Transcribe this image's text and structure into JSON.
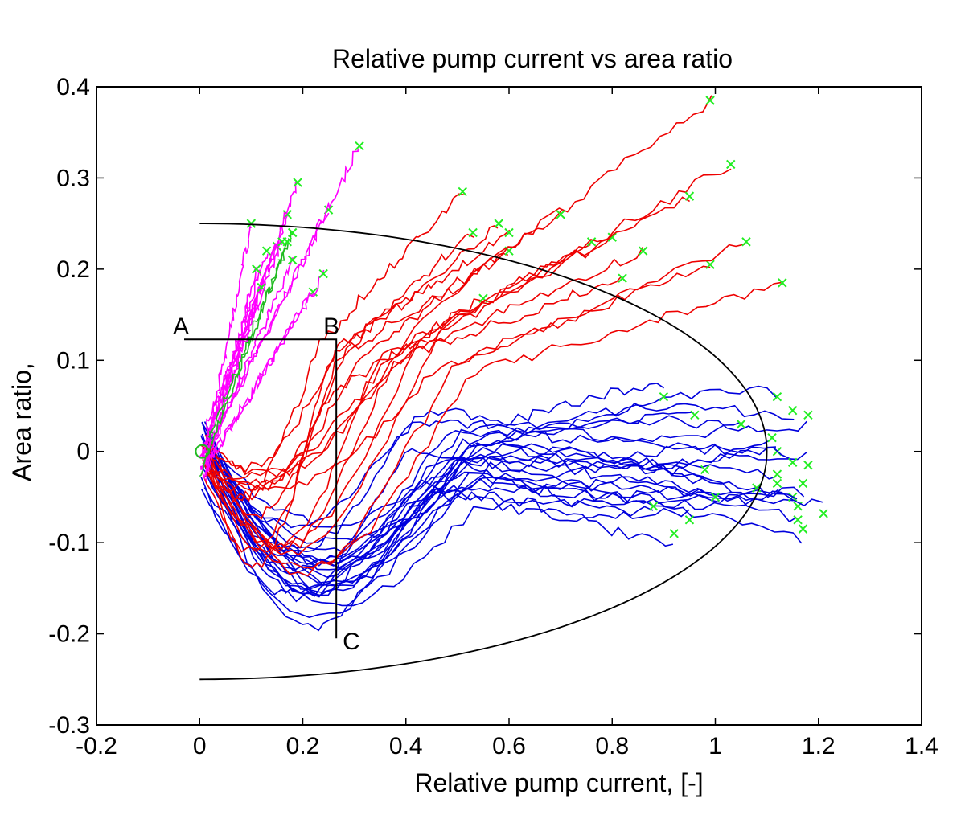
{
  "chart_data": {
    "type": "line",
    "title": "Relative pump current vs area ratio",
    "xlabel": "Relative pump current, [-]",
    "ylabel": "Area ratio,",
    "xlim": [
      -0.2,
      1.4
    ],
    "ylim": [
      -0.3,
      0.4
    ],
    "xticks": [
      -0.2,
      0,
      0.2,
      0.4,
      0.6,
      0.8,
      1,
      1.2,
      1.4
    ],
    "xtick_labels": [
      "-0.2",
      "0",
      "0.2",
      "0.4",
      "0.6",
      "0.8",
      "1",
      "1.2",
      "1.4"
    ],
    "yticks": [
      -0.3,
      -0.2,
      -0.1,
      0,
      0.1,
      0.2,
      0.3,
      0.4
    ],
    "ytick_labels": [
      "-0.3",
      "-0.2",
      "-0.1",
      "0",
      "0.1",
      "0.2",
      "0.3",
      "0.4"
    ],
    "grid": false,
    "colors": {
      "magenta": "#ff00ff",
      "red": "#ee0000",
      "blue": "#0000dd",
      "green": "#22bb22",
      "marker": "#22ee22",
      "boundary": "#000000"
    },
    "boundary": {
      "ellipse_center": [
        0,
        0
      ],
      "ellipse_semi_axes": [
        1.1,
        0.25
      ],
      "x_range": [
        0,
        1.1
      ]
    },
    "regions": [
      {
        "label": "A",
        "x": -0.03,
        "y": 0.123
      },
      {
        "label": "B",
        "x": 0.265,
        "y": 0.123
      },
      {
        "label": "C",
        "x": 0.265,
        "y": -0.205
      }
    ],
    "start_marker": [
      0.005,
      0.0
    ],
    "series_groups": [
      {
        "color": "magenta",
        "endpoints": [
          [
            0.1,
            0.25
          ],
          [
            0.13,
            0.22
          ],
          [
            0.15,
            0.225
          ],
          [
            0.17,
            0.26
          ],
          [
            0.19,
            0.295
          ],
          [
            0.25,
            0.265
          ],
          [
            0.31,
            0.335
          ],
          [
            0.12,
            0.18
          ],
          [
            0.22,
            0.175
          ],
          [
            0.24,
            0.195
          ],
          [
            0.18,
            0.21
          ],
          [
            0.11,
            0.2
          ],
          [
            0.16,
            0.23
          ]
        ]
      },
      {
        "color": "red",
        "endpoints": [
          [
            0.51,
            0.285
          ],
          [
            0.53,
            0.24
          ],
          [
            0.55,
            0.168
          ],
          [
            0.58,
            0.25
          ],
          [
            0.6,
            0.24
          ],
          [
            0.6,
            0.22
          ],
          [
            0.76,
            0.23
          ],
          [
            0.8,
            0.235
          ],
          [
            0.82,
            0.19
          ],
          [
            0.99,
            0.385
          ],
          [
            1.03,
            0.315
          ],
          [
            0.99,
            0.205
          ],
          [
            1.13,
            0.185
          ],
          [
            0.86,
            0.22
          ],
          [
            0.7,
            0.26
          ],
          [
            0.95,
            0.28
          ],
          [
            1.06,
            0.23
          ]
        ]
      },
      {
        "color": "blue",
        "endpoints": [
          [
            1.12,
            0.06
          ],
          [
            1.15,
            0.045
          ],
          [
            1.18,
            0.04
          ],
          [
            1.11,
            0.015
          ],
          [
            1.12,
            0.0
          ],
          [
            1.18,
            -0.015
          ],
          [
            1.15,
            -0.012
          ],
          [
            1.12,
            -0.025
          ],
          [
            1.12,
            -0.035
          ],
          [
            1.17,
            -0.035
          ],
          [
            1.15,
            -0.05
          ],
          [
            1.16,
            -0.06
          ],
          [
            1.21,
            -0.068
          ],
          [
            1.16,
            -0.075
          ],
          [
            1.17,
            -0.085
          ],
          [
            1.08,
            -0.04
          ],
          [
            1.05,
            0.03
          ],
          [
            0.95,
            -0.075
          ],
          [
            0.9,
            0.06
          ],
          [
            1.0,
            -0.05
          ],
          [
            0.98,
            -0.02
          ],
          [
            0.92,
            -0.09
          ],
          [
            0.88,
            -0.06
          ],
          [
            0.96,
            0.04
          ]
        ]
      },
      {
        "color": "green",
        "endpoints": [
          [
            0.18,
            0.24
          ],
          [
            0.17,
            0.23
          ]
        ]
      }
    ]
  }
}
